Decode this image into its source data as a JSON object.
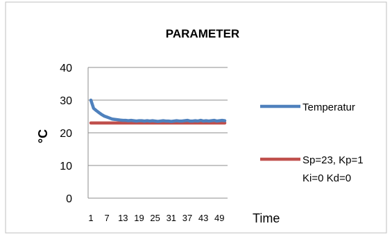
{
  "chart_data": {
    "type": "line",
    "title": "PARAMETER",
    "xlabel": "Time",
    "ylabel": "°C",
    "ylim": [
      0,
      40
    ],
    "yticks": [
      "0",
      "10",
      "20",
      "30",
      "40"
    ],
    "xticks": [
      "1",
      "7",
      "13",
      "19",
      "25",
      "31",
      "37",
      "43",
      "49"
    ],
    "grid": true,
    "legend_position": "right",
    "series": [
      {
        "name": "Temperatur",
        "color": "#4f81bd",
        "x": [
          1,
          2,
          3,
          4,
          5,
          6,
          7,
          8,
          9,
          10,
          11,
          12,
          13,
          14,
          15,
          16,
          17,
          18,
          19,
          20,
          21,
          22,
          23,
          24,
          25,
          26,
          27,
          28,
          29,
          30,
          31,
          32,
          33,
          34,
          35,
          36,
          37,
          38,
          39,
          40,
          41,
          42,
          43,
          44,
          45,
          46,
          47,
          48,
          49,
          50,
          51
        ],
        "values": [
          30,
          27.5,
          26.8,
          26.2,
          25.6,
          25.1,
          24.8,
          24.5,
          24.2,
          24.1,
          24,
          23.9,
          23.8,
          23.8,
          23.7,
          23.8,
          23.7,
          23.6,
          23.7,
          23.7,
          23.6,
          23.7,
          23.6,
          23.7,
          23.6,
          23.5,
          23.6,
          23.7,
          23.6,
          23.6,
          23.5,
          23.6,
          23.7,
          23.6,
          23.6,
          23.7,
          23.8,
          23.6,
          23.6,
          23.7,
          23.6,
          23.8,
          23.6,
          23.7,
          23.6,
          23.7,
          23.8,
          23.6,
          23.7,
          23.8,
          23.7
        ]
      },
      {
        "name": "Sp=23, Kp=1 Ki=0 Kd=0",
        "legend_lines": [
          "Sp=23, Kp=1",
          "Ki=0 Kd=0"
        ],
        "color": "#c0504d",
        "x": [
          1,
          51
        ],
        "values": [
          23,
          23
        ]
      }
    ]
  }
}
